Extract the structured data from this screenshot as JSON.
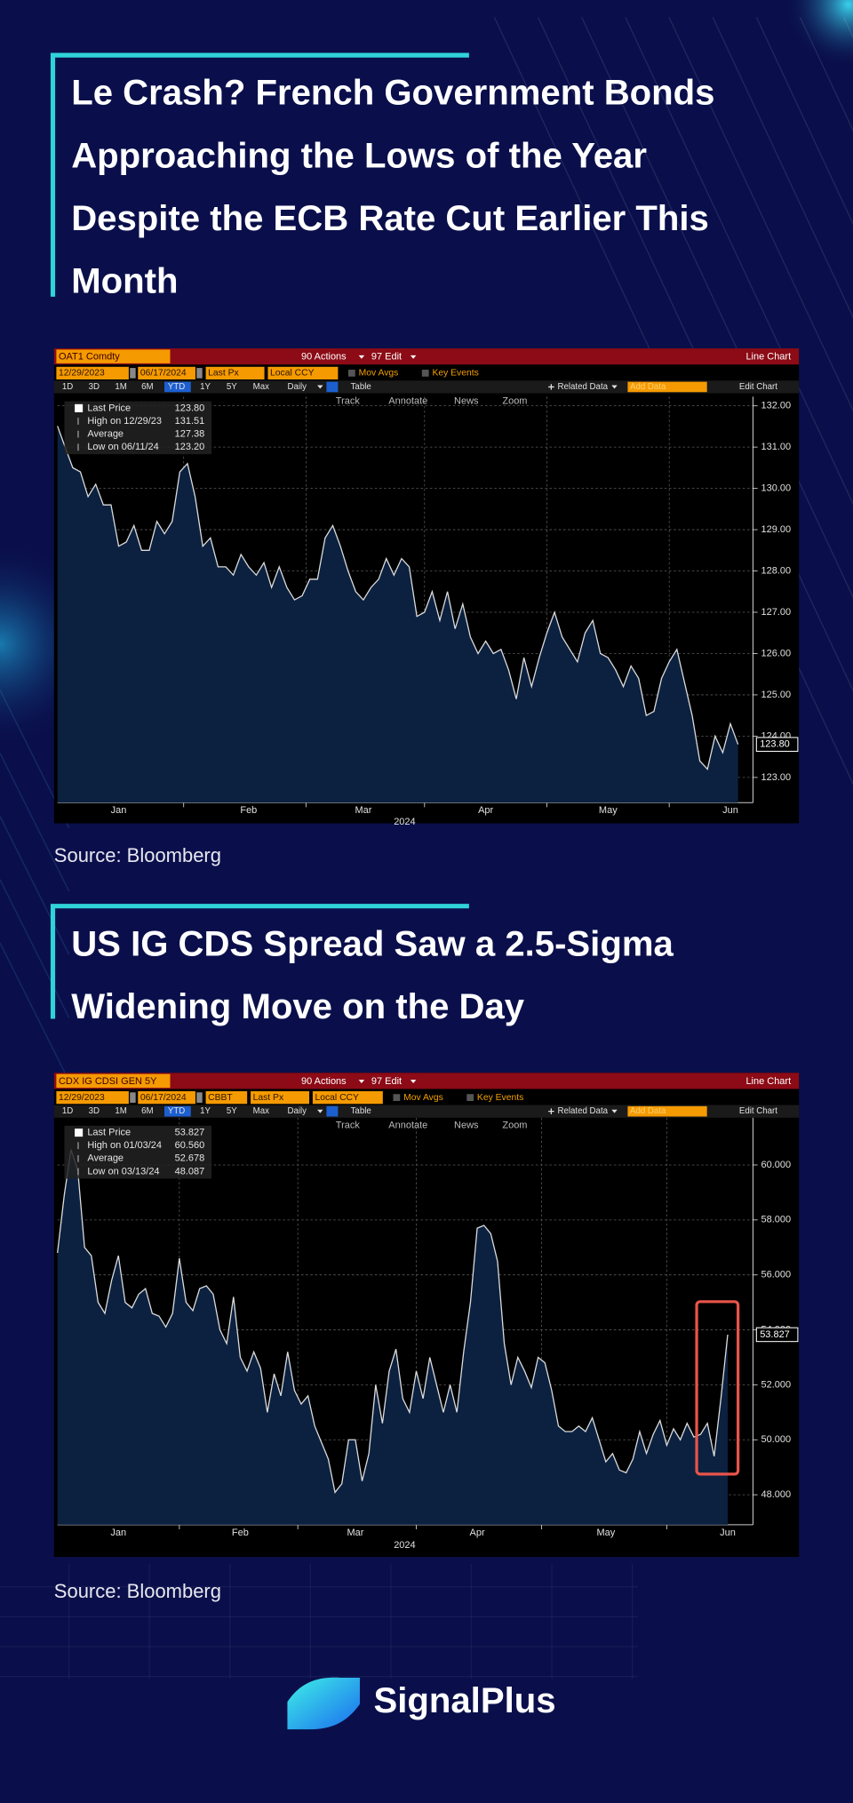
{
  "brand": "SignalPlus",
  "chart_data": [
    {
      "type": "line",
      "title": [
        "Le Crash?  French Government Bonds",
        "Approaching the Lows of the Year",
        "Despite the ECB Rate Cut Earlier This",
        "Month"
      ],
      "source": "Source: Bloomberg",
      "toolbar": {
        "ticker": "OAT1 Comdty",
        "actions": "90 Actions",
        "edit": "97 Edit",
        "view": "Line Chart",
        "start": "12/29/2023",
        "end": "06/17/2024",
        "fields": [
          "Last Px",
          "Local CCY"
        ],
        "studies": [
          "Mov Avgs",
          "Key Events"
        ],
        "periods": [
          "1D",
          "3D",
          "1M",
          "6M",
          "YTD",
          "1Y",
          "5Y",
          "Max"
        ],
        "active_period": 4,
        "frequency": "Daily",
        "table": "Table",
        "related": "Related Data",
        "add": "Add Data",
        "edit_chart": "Edit Chart",
        "tools": [
          "Track",
          "Annotate",
          "News",
          "Zoom"
        ]
      },
      "legend": [
        {
          "label": "Last Price",
          "value": 123.8,
          "value_label": "123.80"
        },
        {
          "label": "High on 12/29/23",
          "value": 131.51
        },
        {
          "label": "Average",
          "value": 127.38
        },
        {
          "label": "Low on 06/11/24",
          "value": 123.2,
          "value_label": "123.20"
        }
      ],
      "xlabel": "2024",
      "categories": [
        null,
        null,
        null,
        null,
        null,
        null,
        null,
        null,
        "Jan",
        null,
        null,
        null,
        null,
        null,
        null,
        null,
        null,
        null,
        null,
        null,
        null,
        null,
        null,
        null,
        null,
        "Feb",
        null,
        null,
        null,
        null,
        null,
        null,
        null,
        null,
        null,
        null,
        null,
        null,
        null,
        null,
        "Mar",
        null,
        null,
        null,
        null,
        null,
        null,
        null,
        null,
        null,
        null,
        null,
        null,
        null,
        null,
        null,
        "Apr",
        null,
        null,
        null,
        null,
        null,
        null,
        null,
        null,
        null,
        null,
        null,
        null,
        null,
        null,
        null,
        "May",
        null,
        null,
        null,
        null,
        null,
        null,
        null,
        null,
        null,
        null,
        null,
        null,
        null,
        null,
        null,
        "Jun",
        null
      ],
      "series": [
        {
          "name": "Last Price",
          "color": "#dcdcdc",
          "area_color": "#0c2140",
          "values": [
            131.51,
            131.0,
            130.5,
            130.4,
            129.8,
            130.1,
            129.6,
            129.6,
            128.6,
            128.7,
            129.1,
            128.5,
            128.5,
            129.2,
            128.9,
            129.2,
            130.4,
            130.6,
            129.8,
            128.6,
            128.8,
            128.1,
            128.1,
            127.9,
            128.4,
            128.1,
            127.9,
            128.2,
            127.6,
            128.1,
            127.6,
            127.3,
            127.4,
            127.8,
            127.8,
            128.8,
            129.1,
            128.6,
            128.0,
            127.5,
            127.3,
            127.6,
            127.8,
            128.3,
            127.9,
            128.3,
            128.1,
            126.9,
            127.0,
            127.5,
            126.8,
            127.5,
            126.6,
            127.2,
            126.4,
            126.0,
            126.3,
            126.0,
            126.1,
            125.6,
            124.9,
            125.9,
            125.2,
            125.9,
            126.5,
            127.0,
            126.4,
            126.1,
            125.8,
            126.5,
            126.8,
            126.0,
            125.9,
            125.6,
            125.2,
            125.7,
            125.4,
            124.5,
            124.6,
            125.4,
            125.8,
            126.1,
            125.3,
            124.5,
            123.4,
            123.2,
            124.0,
            123.6,
            124.3,
            123.8
          ]
        }
      ],
      "ylim": [
        122.39,
        132.22
      ],
      "yticks": [
        {
          "value": 123,
          "label": "123.00"
        },
        {
          "value": 124,
          "label": "124.00"
        },
        {
          "value": 125,
          "label": "125.00"
        },
        {
          "value": 126,
          "label": "126.00"
        },
        {
          "value": 127,
          "label": "127.00"
        },
        {
          "value": 128,
          "label": "128.00"
        },
        {
          "value": 129,
          "label": "129.00"
        },
        {
          "value": 130,
          "label": "130.00"
        },
        {
          "value": 131,
          "label": "131.00"
        },
        {
          "value": 132,
          "label": "132.00"
        }
      ],
      "grid": true
    },
    {
      "type": "line",
      "title": [
        "US IG CDS Spread Saw a 2.5-Sigma",
        "Widening Move on the Day"
      ],
      "source": "Source: Bloomberg",
      "toolbar": {
        "ticker": "CDX IG CDSI GEN 5Y",
        "actions": "90 Actions",
        "edit": "97 Edit",
        "view": "Line Chart",
        "start": "12/29/2023",
        "end": "06/17/2024",
        "fields": [
          "CBBT",
          "Last Px",
          "Local CCY"
        ],
        "studies": [
          "Mov Avgs",
          "Key Events"
        ],
        "periods": [
          "1D",
          "3D",
          "1M",
          "6M",
          "YTD",
          "1Y",
          "5Y",
          "Max"
        ],
        "active_period": 4,
        "frequency": "Daily",
        "table": "Table",
        "related": "Related Data",
        "add": "Add Data",
        "edit_chart": "Edit Chart",
        "tools": [
          "Track",
          "Annotate",
          "News",
          "Zoom"
        ]
      },
      "legend": [
        {
          "label": "Last Price",
          "value": 53.827
        },
        {
          "label": "High on 01/03/24",
          "value": 60.56,
          "value_label": "60.560"
        },
        {
          "label": "Average",
          "value": 52.678
        },
        {
          "label": "Low on 03/13/24",
          "value": 48.087
        }
      ],
      "xlabel": "2024",
      "categories": [
        null,
        null,
        null,
        null,
        null,
        null,
        null,
        null,
        null,
        "Jan",
        null,
        null,
        null,
        null,
        null,
        null,
        null,
        null,
        null,
        null,
        null,
        null,
        null,
        null,
        null,
        null,
        null,
        "Feb",
        null,
        null,
        null,
        null,
        null,
        null,
        null,
        null,
        null,
        null,
        null,
        null,
        null,
        null,
        null,
        null,
        "Mar",
        null,
        null,
        null,
        null,
        null,
        null,
        null,
        null,
        null,
        null,
        null,
        null,
        null,
        null,
        null,
        null,
        null,
        "Apr",
        null,
        null,
        null,
        null,
        null,
        null,
        null,
        null,
        null,
        null,
        null,
        null,
        null,
        null,
        null,
        null,
        null,
        null,
        "May",
        null,
        null,
        null,
        null,
        null,
        null,
        null,
        null,
        null,
        null,
        null,
        null,
        null,
        null,
        null,
        null,
        null,
        "Jun"
      ],
      "series": [
        {
          "name": "Last Price",
          "color": "#dcdcdc",
          "area_color": "#0c2140",
          "values": [
            56.8,
            58.9,
            60.56,
            59.8,
            57.0,
            56.7,
            55.0,
            54.6,
            55.8,
            56.7,
            55.0,
            54.8,
            55.3,
            55.5,
            54.6,
            54.5,
            54.1,
            54.6,
            56.6,
            55.0,
            54.7,
            55.5,
            55.6,
            55.3,
            54.0,
            53.5,
            55.2,
            53.0,
            52.5,
            53.2,
            52.6,
            51.0,
            52.4,
            51.6,
            53.2,
            51.8,
            51.3,
            51.6,
            50.5,
            49.9,
            49.3,
            48.087,
            48.4,
            50.0,
            50.0,
            48.5,
            49.5,
            52.0,
            50.6,
            52.5,
            53.3,
            51.5,
            51.0,
            52.5,
            51.5,
            53.0,
            52.0,
            51.0,
            52.0,
            51.0,
            53.2,
            55.0,
            57.7,
            57.8,
            57.5,
            56.5,
            53.5,
            52.0,
            53.0,
            52.5,
            51.9,
            53.0,
            52.8,
            51.8,
            50.5,
            50.3,
            50.3,
            50.5,
            50.3,
            50.8,
            50.0,
            49.2,
            49.5,
            48.9,
            48.8,
            49.3,
            50.3,
            49.5,
            50.2,
            50.7,
            49.8,
            50.4,
            50.0,
            50.6,
            50.1,
            50.2,
            50.6,
            49.4,
            51.5,
            53.827
          ]
        }
      ],
      "ylim": [
        46.91,
        61.72
      ],
      "yticks": [
        {
          "value": 48,
          "label": "48.000"
        },
        {
          "value": 50,
          "label": "50.000"
        },
        {
          "value": 52,
          "label": "52.000"
        },
        {
          "value": 54,
          "label": "54.000"
        },
        {
          "value": 56,
          "label": "56.000"
        },
        {
          "value": 58,
          "label": "58.000"
        },
        {
          "value": 60,
          "label": "60.000"
        }
      ],
      "grid": true
    }
  ]
}
